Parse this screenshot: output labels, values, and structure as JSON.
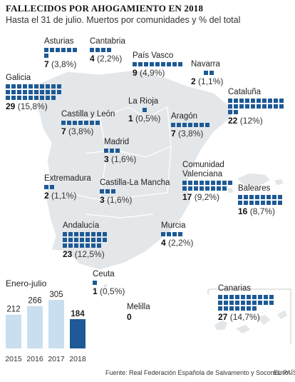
{
  "header": {
    "title": "FALLECIDOS POR AHOGAMIENTO EN 2018",
    "subtitle": "Hasta el 31 de julio. Muertos por comunidades y % del total"
  },
  "colors": {
    "squares": "#1d5a96",
    "map_fill": "#e4e7ea",
    "map_stroke": "#ffffff",
    "bar_past": "#c9dff0",
    "bar_current": "#1d5a96"
  },
  "regions": [
    {
      "id": "asturias",
      "name": "Asturias",
      "count": "7",
      "pct": "(3,8%)",
      "squares": 7
    },
    {
      "id": "cantabria",
      "name": "Cantabria",
      "count": "4",
      "pct": "(2,2%)",
      "squares": 4
    },
    {
      "id": "paisvasco",
      "name": "País Vasco",
      "count": "9",
      "pct": "(4,9%)",
      "squares": 9
    },
    {
      "id": "navarra",
      "name": "Navarra",
      "count": "2",
      "pct": "(1,1%)",
      "squares": 2
    },
    {
      "id": "galicia",
      "name": "Galicia",
      "count": "29",
      "pct": "(15,8%)",
      "squares": 29
    },
    {
      "id": "larioja",
      "name": "La Rioja",
      "count": "1",
      "pct": "(0,5%)",
      "squares": 1
    },
    {
      "id": "cataluna",
      "name": "Cataluña",
      "count": "22",
      "pct": "(12%)",
      "squares": 22
    },
    {
      "id": "castillaleon",
      "name": "Castilla y León",
      "count": "7",
      "pct": "(3,8%)",
      "squares": 7
    },
    {
      "id": "aragon",
      "name": "Aragón",
      "count": "7",
      "pct": "(3,8%)",
      "squares": 7
    },
    {
      "id": "madrid",
      "name": "Madrid",
      "count": "3",
      "pct": "(1,6%)",
      "squares": 3
    },
    {
      "id": "valenciana",
      "name": "Comunidad\nValenciana",
      "name1": "Comunidad",
      "name2": "Valenciana",
      "count": "17",
      "pct": "(9,2%)",
      "squares": 17
    },
    {
      "id": "extremadura",
      "name": "Extremadura",
      "count": "2",
      "pct": "(1,1%)",
      "squares": 2
    },
    {
      "id": "castillamancha",
      "name": "Castilla-La Mancha",
      "count": "3",
      "pct": "(1,6%)",
      "squares": 3
    },
    {
      "id": "baleares",
      "name": "Baleares",
      "count": "16",
      "pct": "(8,7%)",
      "squares": 16
    },
    {
      "id": "andalucia",
      "name": "Andalucía",
      "count": "23",
      "pct": "(12,5%)",
      "squares": 23
    },
    {
      "id": "murcia",
      "name": "Murcia",
      "count": "4",
      "pct": "(2,2%)",
      "squares": 4
    },
    {
      "id": "ceuta",
      "name": "Ceuta",
      "count": "1",
      "pct": "(0,5%)",
      "squares": 1
    },
    {
      "id": "melilla",
      "name": "Melilla",
      "count": "0",
      "pct": "",
      "squares": 0
    },
    {
      "id": "canarias",
      "name": "Canarias",
      "count": "27",
      "pct": "(14,7%)",
      "squares": 27
    }
  ],
  "chart_data": {
    "type": "bar",
    "title": "Enero-julio",
    "categories": [
      "2015",
      "2016",
      "2017",
      "2018"
    ],
    "values": [
      212,
      266,
      305,
      184
    ],
    "ylim": [
      0,
      305
    ],
    "highlight": "2018"
  },
  "footer": {
    "source": "Fuente: Real Federación Española de Salvamento y Socorrismo.",
    "brand": "EL PAÍS"
  }
}
